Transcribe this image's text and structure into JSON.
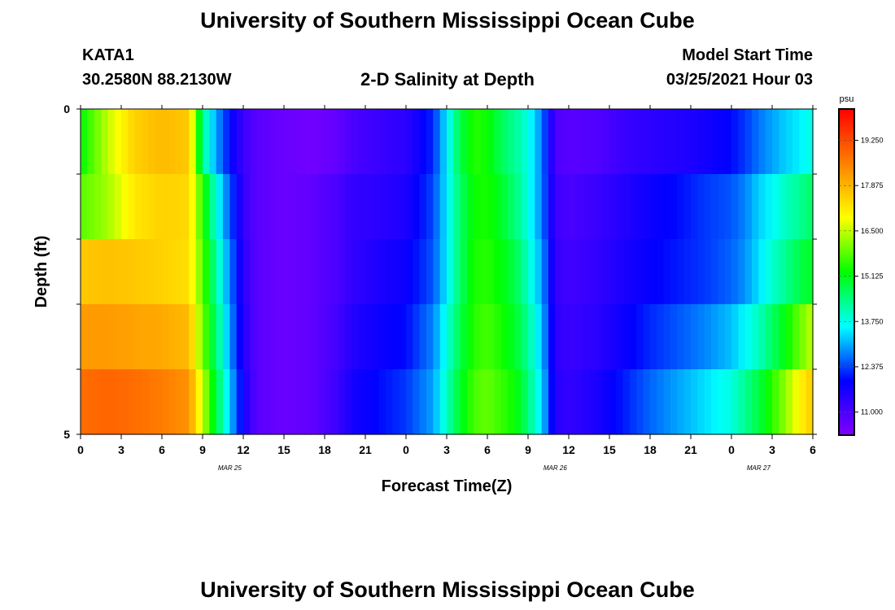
{
  "page": {
    "title_top": "University of Southern Mississippi Ocean Cube",
    "title_bottom": "University of Southern Mississippi Ocean Cube",
    "station_id": "KATA1",
    "station_coords": "30.2580N 88.2130W",
    "plot_title": "2-D Salinity at Depth",
    "model_start_label": "Model Start Time",
    "model_start_value": "03/25/2021 Hour 03"
  },
  "chart_data": {
    "type": "heatmap",
    "title": "2-D Salinity at Depth",
    "xlabel": "Forecast Time(Z)",
    "ylabel": "Depth (ft)",
    "x_ticks": [
      "0",
      "3",
      "6",
      "9",
      "12",
      "15",
      "18",
      "21",
      "0",
      "3",
      "6",
      "9",
      "12",
      "15",
      "18",
      "21",
      "0",
      "3",
      "6"
    ],
    "x_date_labels": [
      {
        "label": "MAR 25",
        "at_hour": 11
      },
      {
        "label": "MAR 26",
        "at_hour": 35
      },
      {
        "label": "MAR 27",
        "at_hour": 50
      }
    ],
    "xlim_hours": [
      0,
      54
    ],
    "y_ticks": [
      "0",
      "5"
    ],
    "ylim_ft": [
      0,
      5
    ],
    "depth_layers": 5,
    "colorbar": {
      "unit": "psu",
      "tick_labels": [
        "19.250",
        "17.875",
        "16.500",
        "15.125",
        "13.750",
        "12.375",
        "11.000"
      ],
      "tick_values": [
        19.25,
        17.875,
        16.5,
        15.125,
        13.75,
        12.375,
        11.0
      ],
      "range": [
        10.3,
        20.2
      ],
      "colors": [
        "#8000ff",
        "#0000ff",
        "#00ffff",
        "#00ff00",
        "#ffff00",
        "#ff8000",
        "#ff0000"
      ]
    },
    "salinity_profiles": {
      "hours": [
        0,
        2,
        4,
        6,
        8,
        9,
        10,
        11,
        12,
        13,
        15,
        17,
        19,
        20,
        22,
        24,
        26,
        27,
        28,
        29,
        30,
        31,
        32,
        33,
        34,
        35,
        36,
        38,
        40,
        42,
        44,
        46,
        48,
        49,
        50,
        51,
        52,
        53,
        54
      ],
      "layers": [
        [
          15.2,
          16.5,
          17.5,
          17.8,
          17.6,
          14.3,
          13.0,
          12.0,
          11.2,
          10.8,
          10.6,
          10.5,
          10.7,
          11.0,
          11.2,
          11.4,
          12.2,
          13.5,
          14.8,
          15.5,
          15.3,
          14.7,
          14.3,
          13.8,
          12.8,
          11.0,
          10.8,
          10.9,
          11.2,
          11.4,
          11.5,
          11.7,
          12.0,
          12.3,
          12.7,
          13.0,
          13.3,
          13.5,
          13.8
        ],
        [
          15.8,
          16.3,
          17.2,
          17.5,
          17.4,
          15.5,
          13.8,
          12.5,
          11.3,
          10.8,
          10.6,
          10.7,
          11.0,
          11.3,
          11.4,
          11.6,
          12.4,
          13.5,
          14.6,
          15.3,
          15.4,
          15.0,
          14.5,
          13.8,
          12.8,
          11.2,
          11.0,
          11.2,
          11.5,
          11.8,
          12.0,
          12.3,
          12.5,
          12.8,
          13.3,
          13.6,
          14.0,
          14.3,
          14.6
        ],
        [
          17.6,
          17.7,
          17.6,
          17.5,
          17.3,
          15.8,
          14.2,
          12.8,
          11.4,
          10.8,
          10.6,
          10.7,
          11.0,
          11.3,
          11.6,
          11.8,
          12.5,
          13.5,
          14.6,
          15.4,
          15.5,
          15.2,
          14.8,
          14.0,
          13.0,
          11.3,
          11.1,
          11.3,
          11.6,
          11.9,
          12.1,
          12.3,
          12.6,
          12.9,
          13.4,
          13.9,
          14.3,
          14.8,
          15.0
        ],
        [
          18.2,
          18.2,
          18.1,
          18.0,
          17.8,
          16.0,
          14.5,
          13.0,
          11.5,
          10.8,
          10.6,
          10.7,
          11.1,
          11.5,
          11.8,
          12.0,
          12.8,
          13.8,
          14.8,
          15.5,
          15.7,
          15.4,
          15.0,
          14.3,
          13.2,
          11.4,
          11.2,
          11.4,
          11.8,
          12.2,
          12.5,
          12.8,
          13.2,
          13.6,
          14.0,
          14.6,
          15.2,
          15.9,
          16.5
        ],
        [
          18.8,
          18.9,
          18.8,
          18.6,
          18.3,
          16.5,
          14.8,
          13.3,
          11.7,
          10.8,
          10.6,
          10.7,
          11.2,
          11.7,
          12.0,
          12.3,
          13.0,
          14.0,
          15.0,
          15.7,
          15.9,
          15.6,
          15.3,
          14.5,
          13.4,
          11.5,
          11.3,
          11.6,
          12.1,
          12.6,
          13.0,
          13.4,
          13.8,
          14.3,
          14.8,
          15.5,
          16.2,
          17.0,
          17.6
        ]
      ]
    }
  }
}
